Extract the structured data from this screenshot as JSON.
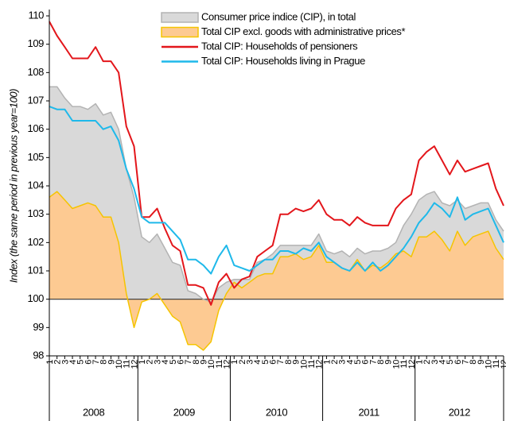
{
  "chart_data": {
    "type": "line",
    "y_label": "Index (the same period in previous year=100)",
    "years": [
      "2008",
      "2009",
      "2010",
      "2011",
      "2012"
    ],
    "categories": [
      "1",
      "2",
      "3",
      "4",
      "5",
      "6",
      "7",
      "8",
      "9",
      "10",
      "11",
      "12",
      "1",
      "2",
      "3",
      "4",
      "5",
      "6",
      "7",
      "8",
      "9",
      "10",
      "11",
      "12",
      "1",
      "2",
      "3",
      "4",
      "5",
      "6",
      "7",
      "8",
      "9",
      "10",
      "11",
      "12",
      "1",
      "2",
      "3",
      "4",
      "5",
      "6",
      "7",
      "8",
      "9",
      "10",
      "11",
      "12",
      "1",
      "2",
      "3",
      "4",
      "5",
      "6",
      "7",
      "8",
      "9",
      "10",
      "11",
      "12"
    ],
    "ylim": [
      98,
      110
    ],
    "yticks": [
      98,
      99,
      100,
      101,
      102,
      103,
      104,
      105,
      106,
      107,
      108,
      109,
      110
    ],
    "baseline": 100,
    "grid": false,
    "legend": "top",
    "series": [
      {
        "name": "Consumer price indice (CIP), in total",
        "type": "area",
        "color": "#d9d9d9",
        "stroke": "#b3b3b3",
        "values": [
          107.5,
          107.5,
          107.1,
          106.8,
          106.8,
          106.7,
          106.9,
          106.5,
          106.6,
          106.0,
          104.6,
          103.6,
          102.2,
          102.0,
          102.3,
          101.8,
          101.3,
          101.2,
          100.3,
          100.2,
          100.0,
          99.9,
          100.4,
          100.6,
          100.7,
          100.7,
          100.7,
          101.3,
          101.4,
          101.6,
          101.9,
          101.9,
          101.9,
          101.9,
          101.9,
          102.3,
          101.7,
          101.6,
          101.7,
          101.5,
          101.8,
          101.6,
          101.7,
          101.7,
          101.8,
          102.0,
          102.6,
          103.0,
          103.5,
          103.7,
          103.8,
          103.4,
          103.3,
          103.5,
          103.2,
          103.3,
          103.4,
          103.4,
          102.8,
          102.4
        ]
      },
      {
        "name": "Total CIP excl. goods with administrative prices*",
        "type": "area",
        "color": "#fdca92",
        "stroke": "#f5c400",
        "values": [
          103.6,
          103.8,
          103.5,
          103.2,
          103.3,
          103.4,
          103.3,
          102.9,
          102.9,
          102.0,
          100.2,
          99.0,
          99.9,
          100.0,
          100.2,
          99.8,
          99.4,
          99.2,
          98.4,
          98.4,
          98.2,
          98.5,
          99.6,
          100.2,
          100.6,
          100.4,
          100.6,
          100.8,
          100.9,
          100.9,
          101.5,
          101.5,
          101.6,
          101.4,
          101.5,
          101.9,
          101.3,
          101.3,
          101.1,
          101.0,
          101.4,
          101.0,
          101.2,
          101.1,
          101.3,
          101.6,
          101.7,
          101.5,
          102.2,
          102.2,
          102.4,
          102.1,
          101.7,
          102.4,
          101.9,
          102.2,
          102.3,
          102.4,
          101.8,
          101.4
        ]
      },
      {
        "name": "Total CIP: Households of pensioners",
        "type": "line",
        "color": "#e3161b",
        "values": [
          109.8,
          109.3,
          108.9,
          108.5,
          108.5,
          108.5,
          108.9,
          108.4,
          108.4,
          108.0,
          106.1,
          105.4,
          102.9,
          102.9,
          103.2,
          102.5,
          101.9,
          101.7,
          100.5,
          100.5,
          100.4,
          99.8,
          100.6,
          100.9,
          100.4,
          100.7,
          100.8,
          101.5,
          101.7,
          101.9,
          103.0,
          103.0,
          103.2,
          103.1,
          103.2,
          103.5,
          103.0,
          102.8,
          102.8,
          102.6,
          102.9,
          102.7,
          102.6,
          102.6,
          102.6,
          103.2,
          103.5,
          103.7,
          104.9,
          105.2,
          105.4,
          104.9,
          104.4,
          104.9,
          104.5,
          104.6,
          104.7,
          104.8,
          103.9,
          103.3
        ]
      },
      {
        "name": "Total CIP: Households living in Prague",
        "type": "line",
        "color": "#1fb9ea",
        "values": [
          106.8,
          106.7,
          106.7,
          106.3,
          106.3,
          106.3,
          106.3,
          106.0,
          106.1,
          105.6,
          104.6,
          103.9,
          102.9,
          102.7,
          102.7,
          102.7,
          102.4,
          102.1,
          101.4,
          101.4,
          101.2,
          100.9,
          101.5,
          101.9,
          101.2,
          101.1,
          101.0,
          101.2,
          101.4,
          101.4,
          101.7,
          101.7,
          101.6,
          101.8,
          101.7,
          102.0,
          101.5,
          101.3,
          101.1,
          101.0,
          101.3,
          101.0,
          101.3,
          101.0,
          101.2,
          101.5,
          101.8,
          102.2,
          102.7,
          103.0,
          103.4,
          103.2,
          102.9,
          103.6,
          102.8,
          103.0,
          103.1,
          103.2,
          102.6,
          102.0
        ]
      }
    ]
  }
}
